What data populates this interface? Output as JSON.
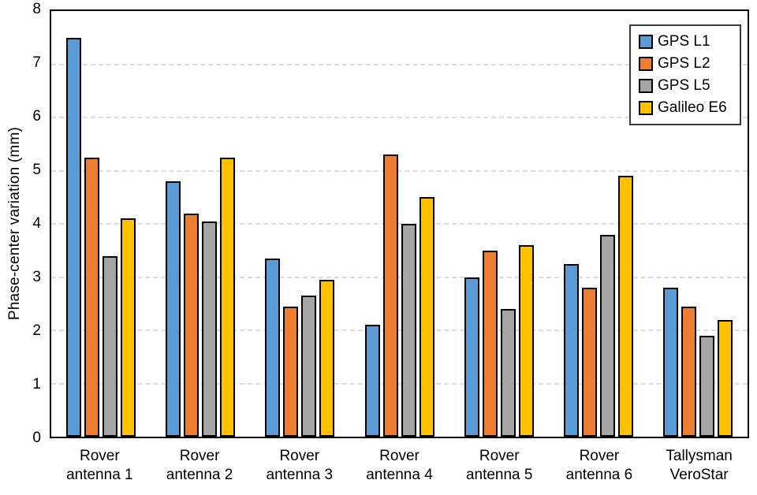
{
  "chart_data": {
    "type": "bar",
    "title": "",
    "xlabel": "",
    "ylabel": "Phase-center variation (mm)",
    "ylim": [
      0,
      8
    ],
    "yticks": [
      0,
      1,
      2,
      3,
      4,
      5,
      6,
      7,
      8
    ],
    "grid": "horizontal-dashed",
    "grid_color": "#dcdcdc",
    "axis_color": "#000000",
    "legend_position": "top-right",
    "categories": [
      "Rover\nantenna 1",
      "Rover\nantenna 2",
      "Rover\nantenna 3",
      "Rover\nantenna 4",
      "Rover\nantenna 5",
      "Rover\nantenna 6",
      "Tallysman\nVeroStar"
    ],
    "series": [
      {
        "name": "GPS L1",
        "color": "#5B9BD5",
        "values": [
          7.5,
          4.8,
          3.35,
          2.1,
          3.0,
          3.25,
          2.8
        ]
      },
      {
        "name": "GPS L2",
        "color": "#ED7D31",
        "values": [
          5.25,
          4.2,
          2.45,
          5.3,
          3.5,
          2.8,
          2.45
        ]
      },
      {
        "name": "GPS L5",
        "color": "#A5A5A5",
        "values": [
          3.4,
          4.05,
          2.65,
          4.0,
          2.4,
          3.8,
          1.9
        ]
      },
      {
        "name": "Galileo E6",
        "color": "#FFC000",
        "values": [
          4.1,
          5.25,
          2.95,
          4.5,
          3.6,
          4.9,
          2.2
        ]
      }
    ]
  }
}
